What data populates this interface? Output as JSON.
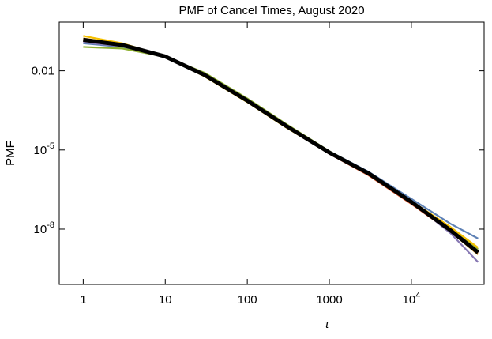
{
  "chart_data": {
    "type": "line",
    "title": "PMF of Cancel Times, August 2020",
    "x_label": "τ",
    "y_label": "PMF",
    "xscale": "log",
    "yscale": "log",
    "x": [
      1,
      3,
      10,
      30,
      100,
      300,
      1000,
      3000,
      10000,
      30000,
      65000
    ],
    "series": [
      {
        "color": "#5E81B5",
        "values": [
          0.11,
          0.08,
          0.034,
          0.008,
          0.00085,
          9e-05,
          9e-06,
          1.5e-06,
          1.4e-07,
          1.6e-08,
          4.4e-09
        ]
      },
      {
        "color": "#E19C24",
        "values": [
          0.17,
          0.1,
          0.036,
          0.0068,
          0.0007,
          7.5e-05,
          7.5e-06,
          1.2e-06,
          1e-07,
          8e-09,
          1.1e-09
        ]
      },
      {
        "color": "#8FB032",
        "values": [
          0.08,
          0.07,
          0.034,
          0.0085,
          0.0009,
          9.5e-05,
          9e-06,
          1.4e-06,
          1.1e-07,
          1e-08,
          1.7e-09
        ]
      },
      {
        "color": "#EB6235",
        "values": [
          0.14,
          0.09,
          0.035,
          0.0072,
          0.00075,
          7.5e-05,
          7.2e-06,
          1.1e-06,
          9e-08,
          8e-09,
          1.3e-09
        ]
      },
      {
        "color": "#8778B3",
        "values": [
          0.12,
          0.085,
          0.035,
          0.0075,
          0.0008,
          8e-05,
          8e-06,
          1.3e-06,
          1.1e-07,
          7e-09,
          5.6e-10
        ]
      },
      {
        "color": "#F5C000",
        "values": [
          0.21,
          0.11,
          0.035,
          0.0062,
          0.00065,
          7e-05,
          7.5e-06,
          1.3e-06,
          1.15e-07,
          1.2e-08,
          2e-09
        ]
      },
      {
        "color": "#000000",
        "values": [
          0.15,
          0.095,
          0.035,
          0.007,
          0.00074,
          8e-05,
          8e-06,
          1.3e-06,
          1.07e-07,
          9e-09,
          1.3e-09
        ]
      }
    ],
    "xlim": [
      0.51,
      77000
    ],
    "ylim": [
      8e-11,
      0.7
    ],
    "xticks": [
      1,
      10,
      100,
      1000,
      {
        "value": 10000,
        "label": "10^4"
      }
    ],
    "yticks": [
      0.01,
      {
        "value": 1e-05,
        "label": "10^-5"
      },
      {
        "value": 1e-08,
        "label": "10^-8"
      }
    ]
  }
}
